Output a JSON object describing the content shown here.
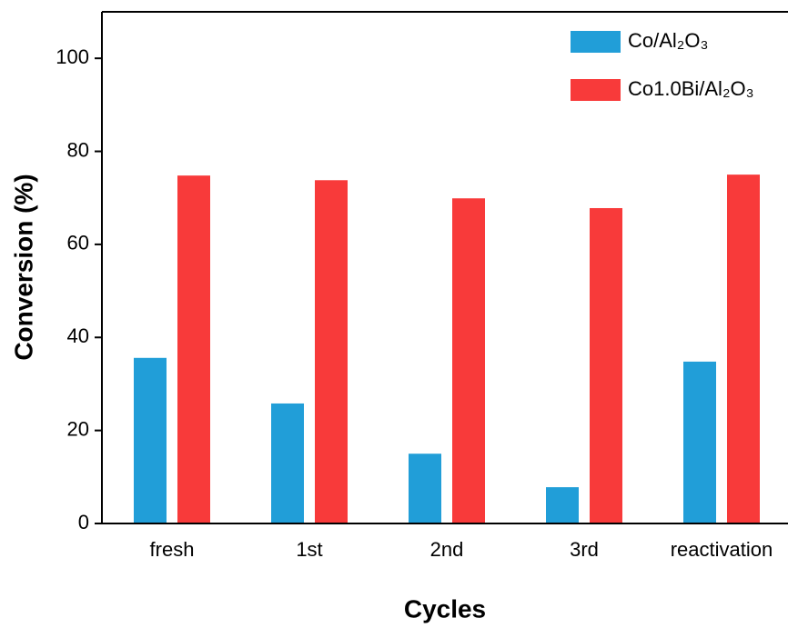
{
  "chart_data": {
    "type": "bar",
    "categories": [
      "fresh",
      "1st",
      "2nd",
      "3rd",
      "reactivation"
    ],
    "series": [
      {
        "name": "Co/Al₂O₃",
        "color": "#219ed8",
        "values": [
          35.6,
          25.8,
          15.0,
          7.8,
          34.8
        ]
      },
      {
        "name": "Co1.0Bi/Al₂O₃",
        "color": "#f83a3a",
        "values": [
          74.8,
          73.8,
          69.9,
          67.8,
          75.0
        ]
      }
    ],
    "x_label": "Cycles",
    "y_label": "Conversion (%)",
    "ylim": [
      0,
      110
    ],
    "yticks": [
      0,
      20,
      40,
      60,
      80,
      100
    ],
    "legend": "upper right"
  }
}
